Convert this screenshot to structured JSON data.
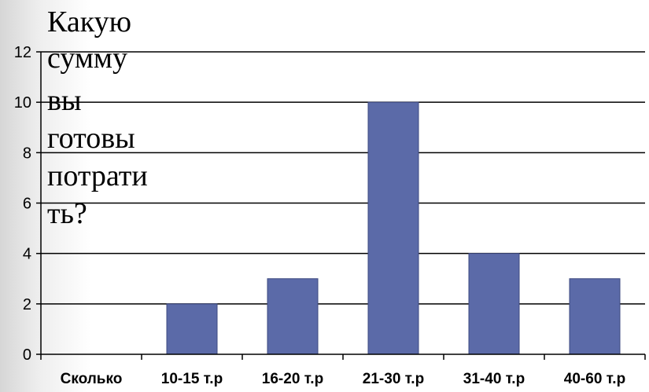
{
  "chart_data": {
    "type": "bar",
    "title_lines": [
      "Какую",
      "сумму",
      "вы",
      "готовы",
      "потрати",
      "ть?"
    ],
    "categories": [
      "Сколько",
      "10-15 т.р",
      "16-20 т.р",
      "21-30 т.р",
      "31-40 т.р",
      "40-60  т.р"
    ],
    "values": [
      0,
      2,
      3,
      10,
      4,
      3
    ],
    "ylim": [
      0,
      12
    ],
    "yticks": [
      0,
      2,
      4,
      6,
      8,
      10,
      12
    ],
    "grid": true,
    "bar_color": "#5b6aa8",
    "bar_edge_color": "#3e4a80"
  }
}
